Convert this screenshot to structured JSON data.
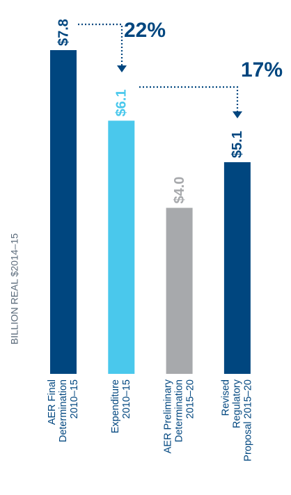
{
  "chart_data": {
    "type": "bar",
    "axis_label": "BILLION REAL $2014–15",
    "categories": [
      [
        "AER Final",
        "Determination",
        "2010–15"
      ],
      [
        "Expenditure",
        "2010–15"
      ],
      [
        "AER Preliminary",
        "Determination",
        "2015–20"
      ],
      [
        "Revised",
        "Regulatory",
        "Proposal 2015–20"
      ]
    ],
    "values": [
      7.8,
      6.1,
      4.0,
      5.1
    ],
    "value_labels": [
      "$7.8",
      "$6.1",
      "$4.0",
      "$5.1"
    ],
    "colors": [
      "#00467f",
      "#4ac8ec",
      "#a7a9ac",
      "#00467f"
    ],
    "annotations": [
      "22%",
      "17%"
    ]
  }
}
